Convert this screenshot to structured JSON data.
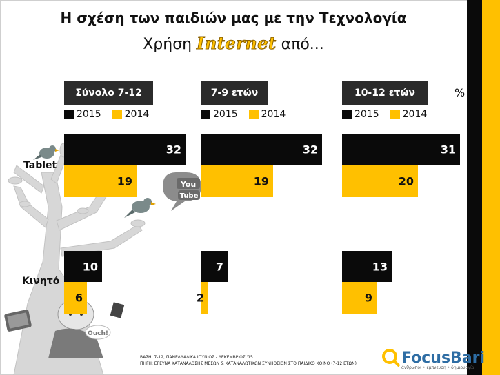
{
  "title": "Η σχέση των παιδιών μας με την Τεχνολογία",
  "subtitle": {
    "prefix": "Χρήση",
    "brand": "Internet",
    "suffix": "από..."
  },
  "unit_label": "%",
  "legend": [
    "2015",
    "2014"
  ],
  "chart_data": {
    "type": "bar",
    "orientation": "horizontal",
    "unit": "%",
    "categories": [
      "Tablet",
      "Κινητό"
    ],
    "panels": [
      {
        "name": "Σύνολο 7-12",
        "series": [
          {
            "name": "2015",
            "color": "#0a0a0a",
            "values": [
              32,
              10
            ]
          },
          {
            "name": "2014",
            "color": "#ffc000",
            "values": [
              19,
              6
            ]
          }
        ]
      },
      {
        "name": "7-9 ετών",
        "series": [
          {
            "name": "2015",
            "color": "#0a0a0a",
            "values": [
              32,
              7
            ]
          },
          {
            "name": "2014",
            "color": "#ffc000",
            "values": [
              19,
              2
            ]
          }
        ]
      },
      {
        "name": "10-12 ετών",
        "series": [
          {
            "name": "2015",
            "color": "#0a0a0a",
            "values": [
              31,
              13
            ]
          },
          {
            "name": "2014",
            "color": "#ffc000",
            "values": [
              20,
              9
            ]
          }
        ]
      }
    ],
    "xlim": [
      0,
      32
    ]
  },
  "illustration": {
    "logo_text": "You Tube",
    "speech_text": "Ouch!"
  },
  "footnotes": {
    "base": "ΒΑΣΗ: 7-12, ΠΑΝΕΛΛΑΔΙΚΑ ΙΟΥΝΙΟΣ - ΔΕΚΕΜΒΡΙΟΣ '15",
    "source": "ΠΗΓΗ: ΕΡΕΥΝΑ ΚΑΤΑΝΑΛΩΣΗΣ ΜΕΣΩΝ & ΚΑΤΑΝΑΛΩΤΙΚΩΝ ΣΥΝΗΘΕΙΩΝ ΣΤΟ ΠΑΙΔΙΚΟ ΚΟΙΝΟ (7-12 ΕΤΩΝ)"
  },
  "logo": {
    "name": "FocusBari",
    "tagline": "άνθρωποι • έμπνευση • δημιουργία"
  },
  "colors": {
    "y2015": "#0a0a0a",
    "y2014": "#ffc000",
    "header": "#2b2b2b",
    "brand_blue": "#2e6da4"
  }
}
